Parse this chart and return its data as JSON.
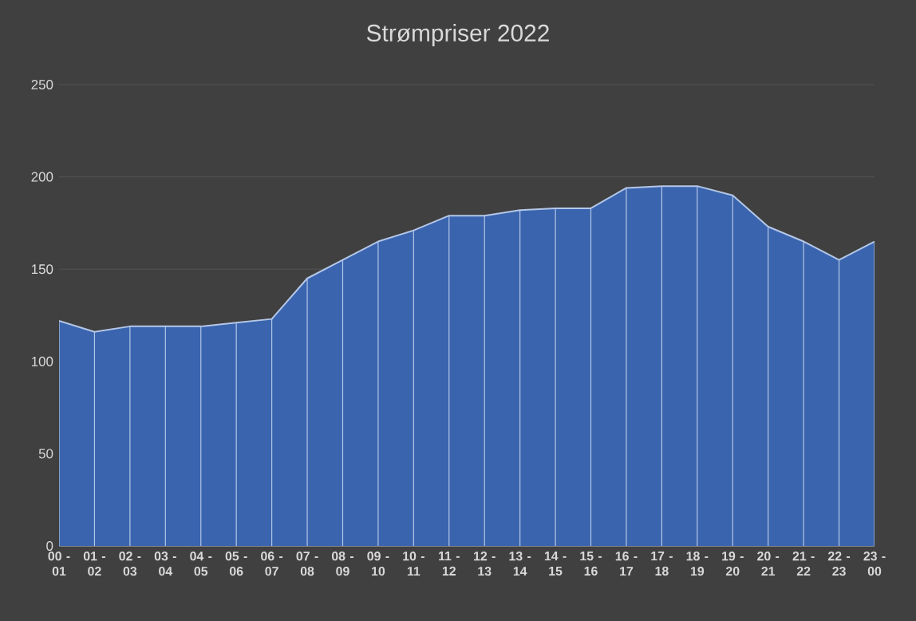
{
  "chart_data": {
    "type": "area",
    "title": "Strømpriser 2022",
    "categories": [
      "00 - 01",
      "01 - 02",
      "02 - 03",
      "03 - 04",
      "04 - 05",
      "05 - 06",
      "06 - 07",
      "07 - 08",
      "08 - 09",
      "09 - 10",
      "10 - 11",
      "11 - 12",
      "12 - 13",
      "13 - 14",
      "14 - 15",
      "15 - 16",
      "16 - 17",
      "17 - 18",
      "18 - 19",
      "19 - 20",
      "20 - 21",
      "21 - 22",
      "22 - 23",
      "23 - 00"
    ],
    "values": [
      122,
      116,
      119,
      119,
      119,
      121,
      123,
      145,
      155,
      165,
      171,
      179,
      179,
      182,
      183,
      183,
      194,
      195,
      195,
      190,
      173,
      165,
      155,
      165
    ],
    "color": "#3a64ae",
    "ylim": [
      0,
      250
    ],
    "yticks": [
      0,
      50,
      100,
      150,
      200,
      250
    ],
    "grid": true
  }
}
